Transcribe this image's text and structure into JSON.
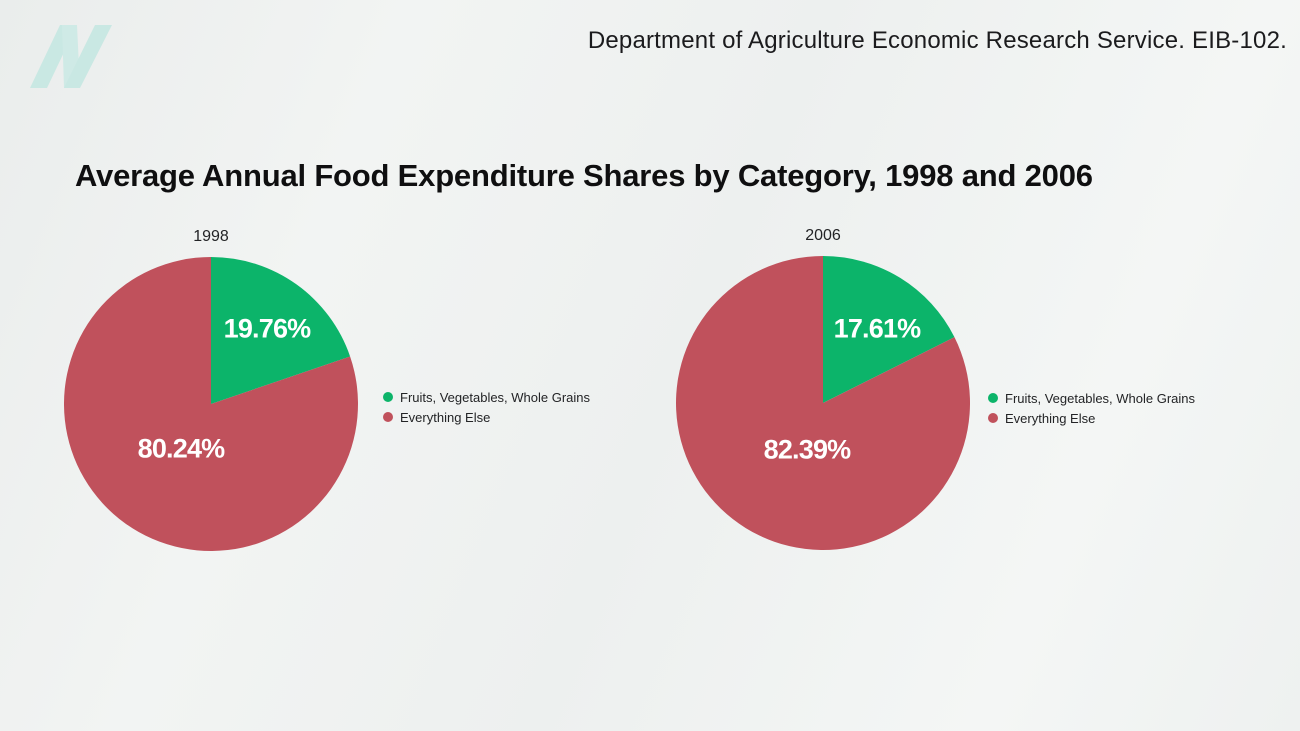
{
  "header": {
    "citation": "Department of Agriculture Economic Research Service. EIB-102.",
    "logo": "nutritionfacts-n-ribbon-logo"
  },
  "title": "Average Annual Food Expenditure Shares by Category, 1998 and 2006",
  "colors": {
    "green": "#0cb46a",
    "red": "#c0515c",
    "background": "#eff1f0",
    "logo_teal": "#c9e8e3",
    "text_dark": "#1b1b1d",
    "slice_label_white": "#ffffff"
  },
  "chart_data": [
    {
      "type": "pie",
      "title": "1998",
      "categories": [
        "Fruits, Vegetables, Whole Grains",
        "Everything Else"
      ],
      "values": [
        19.76,
        80.24
      ],
      "slice_labels": [
        "19.76%",
        "80.24%"
      ],
      "slice_colors": [
        "#0cb46a",
        "#c0515c"
      ],
      "start_angle_deg": 0,
      "direction": "clockwise",
      "legend_position": "right",
      "legend": [
        "Fruits, Vegetables, Whole Grains",
        "Everything Else"
      ]
    },
    {
      "type": "pie",
      "title": "2006",
      "categories": [
        "Fruits, Vegetables, Whole Grains",
        "Everything Else"
      ],
      "values": [
        17.61,
        82.39
      ],
      "slice_labels": [
        "17.61%",
        "82.39%"
      ],
      "slice_colors": [
        "#0cb46a",
        "#c0515c"
      ],
      "start_angle_deg": 0,
      "direction": "clockwise",
      "legend_position": "right",
      "legend": [
        "Fruits, Vegetables, Whole Grains",
        "Everything Else"
      ]
    }
  ]
}
